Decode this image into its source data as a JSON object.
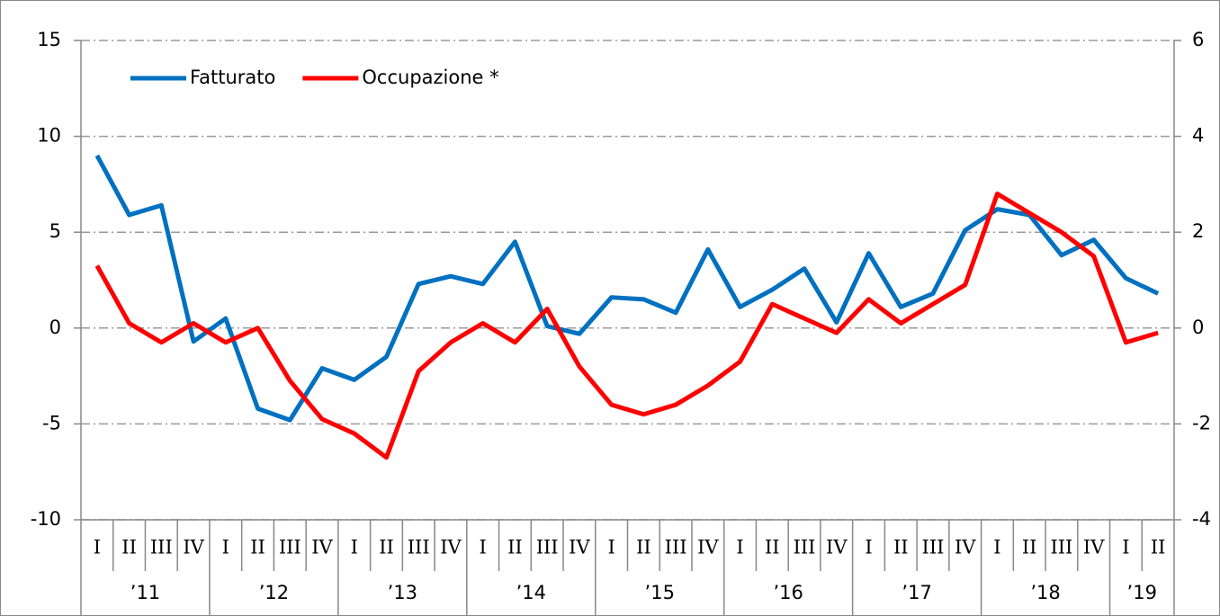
{
  "chart_data": {
    "type": "line",
    "categories": [
      "I",
      "II",
      "III",
      "IV",
      "I",
      "II",
      "III",
      "IV",
      "I",
      "II",
      "III",
      "IV",
      "I",
      "II",
      "III",
      "IV",
      "I",
      "II",
      "III",
      "IV",
      "I",
      "II",
      "III",
      "IV",
      "I",
      "II",
      "III",
      "IV",
      "I",
      "II",
      "III",
      "IV",
      "I",
      "II"
    ],
    "category_groups": [
      "’11",
      "’12",
      "’13",
      "’14",
      "’15",
      "’16",
      "’17",
      "’18",
      "’19"
    ],
    "series": [
      {
        "name": "Fatturato",
        "color": "#0070c0",
        "values": [
          9.0,
          5.9,
          6.4,
          -0.7,
          0.5,
          -4.2,
          -4.8,
          -2.1,
          -2.7,
          -1.5,
          2.3,
          2.7,
          2.3,
          4.5,
          0.1,
          -0.3,
          1.6,
          1.5,
          0.8,
          4.1,
          1.1,
          2.0,
          3.1,
          0.3,
          3.9,
          1.1,
          1.8,
          5.1,
          6.2,
          5.9,
          3.8,
          4.6,
          2.6,
          1.8
        ]
      },
      {
        "name": "Occupazione *",
        "color": "#ff0000",
        "axis": "y2",
        "values": [
          1.3,
          0.1,
          -0.3,
          0.1,
          -0.3,
          0.0,
          -1.1,
          -1.9,
          -2.2,
          -2.7,
          -0.9,
          -0.3,
          0.1,
          -0.3,
          0.4,
          -0.8,
          -1.6,
          -1.8,
          -1.6,
          -1.2,
          -0.7,
          0.5,
          0.2,
          -0.1,
          0.6,
          0.1,
          0.5,
          0.9,
          2.8,
          2.4,
          2.0,
          1.5,
          -0.3,
          -0.1
        ]
      }
    ],
    "ylim": [
      -10,
      15
    ],
    "yticks": [
      -10,
      -5,
      0,
      5,
      10,
      15
    ],
    "y2lim": [
      -4,
      6
    ],
    "y2ticks": [
      -4,
      -2,
      0,
      2,
      4,
      6
    ],
    "grid": true,
    "legend": "top-left"
  }
}
